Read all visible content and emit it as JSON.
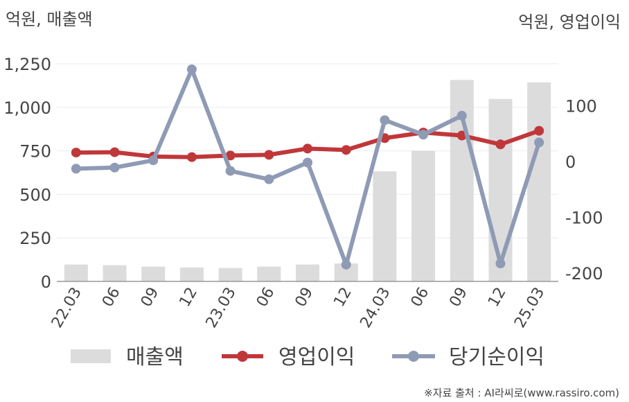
{
  "chart_data": {
    "type": "bar+line",
    "left_unit_label": "억원, 매출액",
    "right_unit_label": "억원, 영업이익",
    "categories": [
      "22.03",
      "06",
      "09",
      "12",
      "23.03",
      "06",
      "09",
      "12",
      "24.03",
      "06",
      "09",
      "12",
      "25.03"
    ],
    "left_axis": {
      "ylim": [
        0,
        1250
      ],
      "ticks": [
        "0",
        "250",
        "500",
        "750",
        "1,000",
        "1,250"
      ],
      "tick_values": [
        0,
        250,
        500,
        750,
        1000,
        1250
      ]
    },
    "right_axis": {
      "ylim": [
        -215,
        175
      ],
      "ticks": [
        "-200",
        "-100",
        "0",
        "100"
      ],
      "tick_values": [
        -200,
        -100,
        0,
        100
      ]
    },
    "series": [
      {
        "name": "매출액",
        "kind": "bar",
        "axis": "left",
        "color": "#dcdcdc",
        "values": [
          97,
          93,
          85,
          80,
          77,
          85,
          97,
          103,
          632,
          750,
          1157,
          1048,
          1143
        ]
      },
      {
        "name": "영업이익",
        "kind": "line",
        "axis": "left",
        "color": "#c0373a",
        "values": [
          740,
          742,
          717,
          714,
          723,
          727,
          763,
          755,
          823,
          855,
          838,
          787,
          865
        ]
      },
      {
        "name": "당기순이익",
        "kind": "line",
        "axis": "right",
        "color": "#8f9bb5",
        "values": [
          -13,
          -11,
          2,
          165,
          -17,
          -32,
          -2,
          -185,
          74,
          48,
          82,
          -183,
          34
        ]
      }
    ],
    "grid": true,
    "legend_position": "bottom"
  },
  "source_text": "※자료 출처 : AI라씨로(www.rassiro.com)"
}
